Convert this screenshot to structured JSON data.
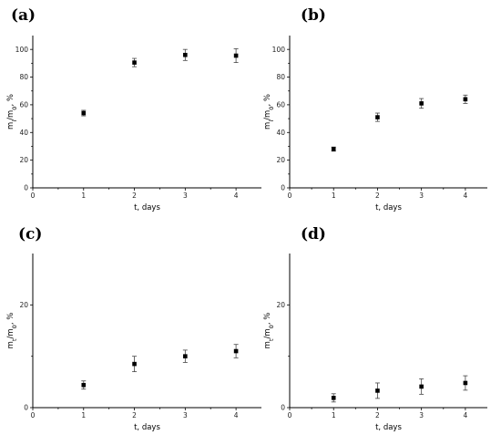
{
  "chart_data": [
    {
      "type": "scatter",
      "panel_label": "(a)",
      "xlabel": "t, days",
      "ylabel_main": "m",
      "ylabel_sub1": "i",
      "ylabel_mid": "/m",
      "ylabel_sub2": "0",
      "ylabel_tail": ", %",
      "xlim": [
        0,
        4.5
      ],
      "ylim": [
        0,
        110
      ],
      "xticks": [
        0,
        1,
        2,
        3,
        4
      ],
      "yticks": [
        0,
        20,
        40,
        60,
        80,
        100
      ],
      "x": [
        1,
        2,
        3,
        4
      ],
      "y": [
        54,
        90.5,
        96,
        95.5
      ],
      "err": [
        2,
        3,
        4,
        5
      ]
    },
    {
      "type": "scatter",
      "panel_label": "(b)",
      "xlabel": "t, days",
      "ylabel_main": "m",
      "ylabel_sub1": "i",
      "ylabel_mid": "/m",
      "ylabel_sub2": "0",
      "ylabel_tail": ", %",
      "xlim": [
        0,
        4.5
      ],
      "ylim": [
        0,
        110
      ],
      "xticks": [
        0,
        1,
        2,
        3,
        4
      ],
      "yticks": [
        0,
        20,
        40,
        60,
        80,
        100
      ],
      "x": [
        1,
        2,
        3,
        4
      ],
      "y": [
        28,
        51,
        61,
        64
      ],
      "err": [
        1.5,
        3,
        3.5,
        3
      ]
    },
    {
      "type": "scatter",
      "panel_label": "(c)",
      "xlabel": "t, days",
      "ylabel_main": "m",
      "ylabel_sub1": "t",
      "ylabel_mid": "/m",
      "ylabel_sub2": "0",
      "ylabel_tail": ", %",
      "xlim": [
        0,
        4.5
      ],
      "ylim": [
        0,
        30
      ],
      "xticks": [
        0,
        1,
        2,
        3,
        4
      ],
      "yticks": [
        0,
        20
      ],
      "x": [
        1,
        2,
        3,
        4
      ],
      "y": [
        4.4,
        8.5,
        10,
        11
      ],
      "err": [
        0.8,
        1.5,
        1.2,
        1.3
      ]
    },
    {
      "type": "scatter",
      "panel_label": "(d)",
      "xlabel": "t, days",
      "ylabel_main": "m",
      "ylabel_sub1": "t",
      "ylabel_mid": "/m",
      "ylabel_sub2": "0",
      "ylabel_tail": ", %",
      "xlim": [
        0,
        4.5
      ],
      "ylim": [
        0,
        30
      ],
      "xticks": [
        0,
        1,
        2,
        3,
        4
      ],
      "yticks": [
        0,
        20
      ],
      "x": [
        1,
        2,
        3,
        4
      ],
      "y": [
        1.9,
        3.3,
        4.1,
        4.8
      ],
      "err": [
        0.8,
        1.5,
        1.5,
        1.4
      ]
    }
  ]
}
